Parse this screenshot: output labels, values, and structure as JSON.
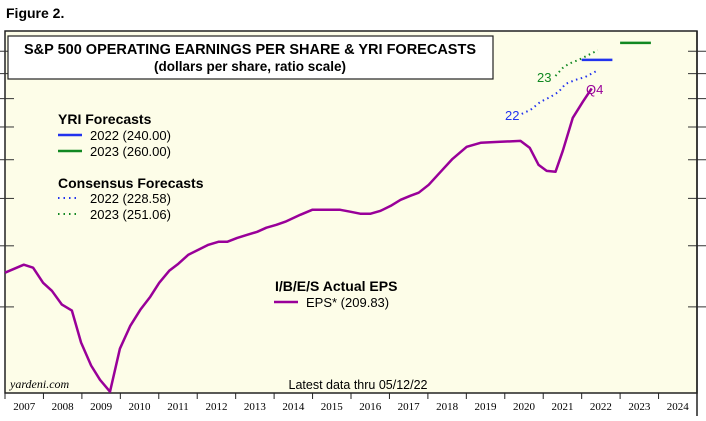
{
  "figure_label": "Figure 2.",
  "chart_data": {
    "type": "line",
    "title": "S&P 500 OPERATING EARNINGS PER SHARE & YRI FORECASTS",
    "subtitle": "(dollars per share, ratio scale)",
    "y_scale": "log",
    "ylim": [
      50,
      275
    ],
    "y_ticks": [
      75,
      100,
      125,
      150,
      175,
      200,
      225,
      250
    ],
    "xlim": [
      2007,
      2025
    ],
    "x_tick_labels": [
      "2007",
      "2008",
      "2009",
      "2010",
      "2011",
      "2012",
      "2013",
      "2014",
      "2015",
      "2016",
      "2017",
      "2018",
      "2019",
      "2020",
      "2021",
      "2022",
      "2023",
      "2024"
    ],
    "grid": false,
    "source": "yardeni.com",
    "note": "Latest data thru 05/12/22",
    "legend_groups": [
      {
        "heading": "YRI Forecasts",
        "entries": [
          {
            "label": "2022 (240.00)",
            "color": "#2233ee",
            "style": "solid"
          },
          {
            "label": "2023 (260.00)",
            "color": "#118822",
            "style": "solid"
          }
        ]
      },
      {
        "heading": "Consensus Forecasts",
        "entries": [
          {
            "label": "2022 (228.58)",
            "color": "#2233ee",
            "style": "dotted"
          },
          {
            "label": "2023 (251.06)",
            "color": "#118822",
            "style": "dotted"
          }
        ]
      },
      {
        "heading": "I/B/E/S Actual EPS",
        "entries": [
          {
            "label": "EPS* (209.83)",
            "color": "#990099",
            "style": "solid"
          }
        ]
      }
    ],
    "series": [
      {
        "name": "EPS*",
        "color": "#990099",
        "style": "solid",
        "end_label": "Q4",
        "x": [
          2007.0,
          2007.49,
          2007.73,
          2007.99,
          2008.22,
          2008.48,
          2008.74,
          2008.98,
          2009.24,
          2009.47,
          2009.73,
          2009.99,
          2010.26,
          2010.52,
          2010.78,
          2011.01,
          2011.27,
          2011.51,
          2011.77,
          2012.03,
          2012.29,
          2012.55,
          2012.78,
          2013.04,
          2013.3,
          2013.56,
          2013.8,
          2014.06,
          2014.29,
          2014.68,
          2014.99,
          2015.2,
          2015.72,
          2015.98,
          2016.24,
          2016.51,
          2016.77,
          2017.03,
          2017.29,
          2017.55,
          2017.76,
          2018.02,
          2018.33,
          2018.64,
          2019.01,
          2019.37,
          2019.89,
          2020.41,
          2020.65,
          2020.88,
          2021.09,
          2021.32,
          2021.51,
          2021.77,
          2022.03,
          2022.26
        ],
        "y": [
          88.1,
          91.5,
          90.2,
          84.0,
          80.9,
          75.8,
          73.7,
          63.4,
          56.9,
          53.2,
          50.3,
          61.6,
          68.6,
          74.0,
          78.7,
          84.0,
          88.9,
          91.9,
          95.9,
          98.2,
          100.5,
          101.9,
          101.9,
          103.8,
          105.3,
          106.8,
          108.9,
          110.4,
          112.0,
          115.7,
          118.5,
          118.5,
          118.5,
          117.4,
          116.3,
          116.3,
          117.9,
          120.7,
          124.2,
          126.6,
          128.4,
          133.3,
          141.7,
          150.6,
          159.4,
          162.4,
          163.2,
          163.9,
          158.6,
          146.4,
          142.3,
          141.7,
          156.4,
          182.7,
          197.0,
          209.83
        ]
      },
      {
        "name": "Consensus 2022",
        "color": "#2233ee",
        "style": "dotted",
        "start_label": "22",
        "x": [
          2020.44,
          2020.67,
          2020.93,
          2021.19,
          2021.4,
          2021.58,
          2021.84,
          2022.1,
          2022.42
        ],
        "y": [
          186.1,
          189.7,
          197.0,
          201.6,
          206.4,
          214.4,
          218.4,
          221.5,
          228.58
        ]
      },
      {
        "name": "Consensus 2023",
        "color": "#118822",
        "style": "dotted",
        "start_label": "23",
        "x": [
          2021.32,
          2021.51,
          2021.66,
          2021.92,
          2022.18,
          2022.42
        ],
        "y": [
          222.6,
          231.1,
          235.5,
          240.0,
          245.7,
          251.06
        ]
      },
      {
        "name": "YRI 2022",
        "color": "#2233ee",
        "style": "solid",
        "x": [
          2022.0,
          2022.8
        ],
        "y": [
          240.0,
          240.0
        ]
      },
      {
        "name": "YRI 2023",
        "color": "#118822",
        "style": "solid",
        "x": [
          2023.0,
          2023.8
        ],
        "y": [
          260.0,
          260.0
        ]
      }
    ]
  }
}
